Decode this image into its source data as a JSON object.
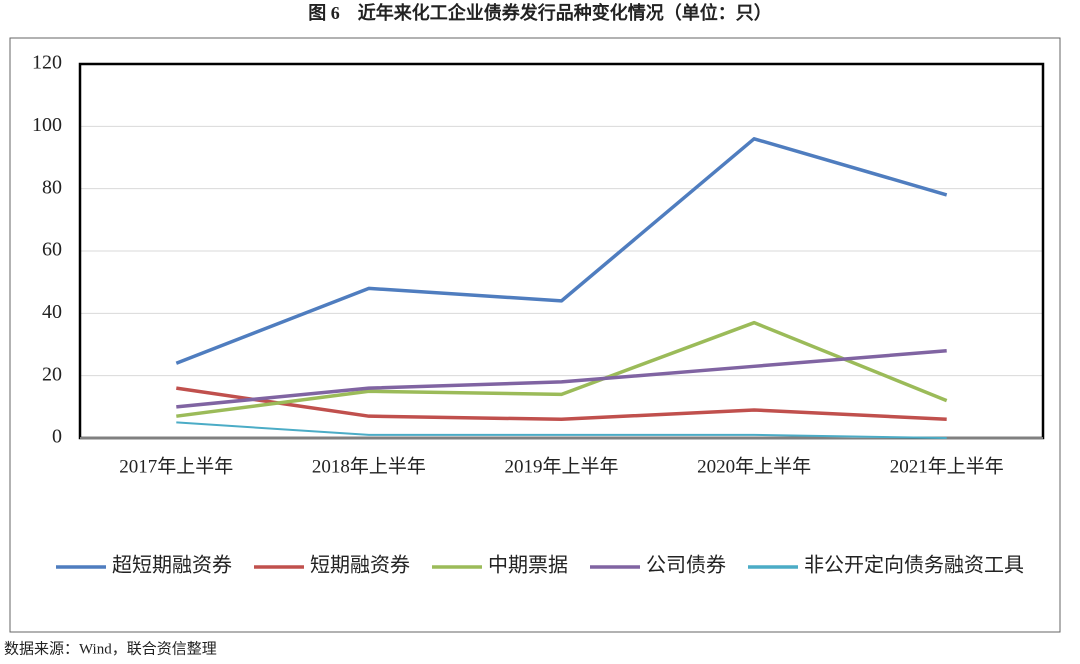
{
  "chart_data": {
    "type": "line",
    "title": "图 6　近年来化工企业债券发行品种变化情况（单位：只）",
    "source": "数据来源：Wind，联合资信整理",
    "categories": [
      "2017年上半年",
      "2018年上半年",
      "2019年上半年",
      "2020年上半年",
      "2021年上半年"
    ],
    "series": [
      {
        "name": "超短期融资券",
        "color": "#4f7dbf",
        "values": [
          24,
          48,
          44,
          96,
          78
        ]
      },
      {
        "name": "短期融资券",
        "color": "#c0504d",
        "values": [
          16,
          7,
          6,
          9,
          6
        ]
      },
      {
        "name": "中期票据",
        "color": "#9bbb59",
        "values": [
          7,
          15,
          14,
          37,
          12
        ]
      },
      {
        "name": "公司债券",
        "color": "#8064a2",
        "values": [
          10,
          16,
          18,
          23,
          28
        ]
      },
      {
        "name": "非公开定向债务融资工具",
        "color": "#4bacc6",
        "values": [
          5,
          1,
          1,
          1,
          0
        ]
      }
    ],
    "ylim": [
      0,
      120
    ],
    "yticks": [
      0,
      20,
      40,
      60,
      80,
      100,
      120
    ],
    "grid": true,
    "legend": "bottom"
  }
}
